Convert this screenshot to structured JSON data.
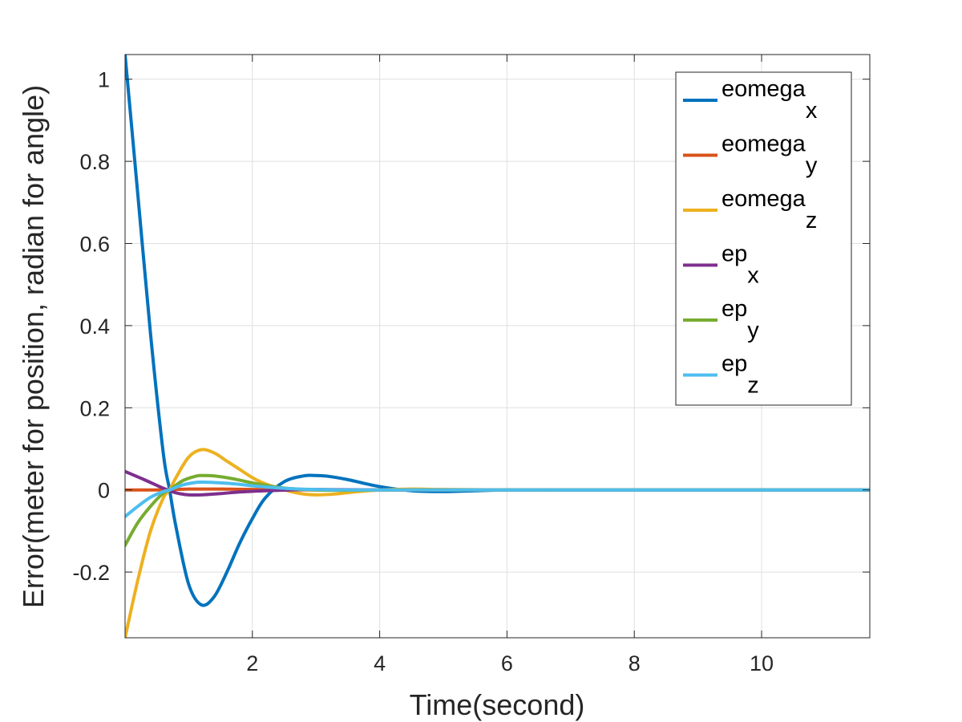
{
  "chart_data": {
    "type": "line",
    "xlabel": "Time(second)",
    "ylabel": "Error(meter for position, radian for angle)",
    "xlim": [
      0.0,
      11.7
    ],
    "ylim": [
      -0.36,
      1.06
    ],
    "xticks": [
      2,
      4,
      6,
      8,
      10
    ],
    "yticks": [
      -0.2,
      0,
      0.2,
      0.4,
      0.6,
      0.8,
      1
    ],
    "xtick_labels": [
      "2",
      "4",
      "6",
      "8",
      "10"
    ],
    "ytick_labels": [
      "-0.2",
      "0",
      "0.2",
      "0.4",
      "0.6",
      "0.8",
      "1"
    ],
    "grid": true,
    "legend_position": "top-right",
    "series": [
      {
        "name_base": "eomega",
        "name_sub": "x",
        "color": "#0072BD",
        "x": [
          0.0,
          0.2,
          0.4,
          0.6,
          0.7,
          0.8,
          1.0,
          1.2,
          1.4,
          1.6,
          1.8,
          2.0,
          2.2,
          2.5,
          2.8,
          3.0,
          3.2,
          3.5,
          4.0,
          4.5,
          5.0,
          5.5,
          6.0,
          7.0,
          8.0,
          9.0,
          10.0,
          11.7
        ],
        "y": [
          1.06,
          0.72,
          0.38,
          0.09,
          0.0,
          -0.09,
          -0.23,
          -0.28,
          -0.26,
          -0.2,
          -0.13,
          -0.07,
          -0.02,
          0.02,
          0.034,
          0.035,
          0.033,
          0.025,
          0.008,
          -0.002,
          -0.004,
          -0.002,
          0.0,
          0.0,
          0.0,
          0.0,
          0.0,
          0.0
        ]
      },
      {
        "name_base": "eomega",
        "name_sub": "y",
        "color": "#D95319",
        "x": [
          0.0,
          0.5,
          1.0,
          1.5,
          2.0,
          3.0,
          4.0,
          6.0,
          8.0,
          10.0,
          11.7
        ],
        "y": [
          0.0,
          0.0,
          0.002,
          0.002,
          0.001,
          0.0,
          0.0,
          0.0,
          0.0,
          0.0,
          0.0
        ]
      },
      {
        "name_base": "eomega",
        "name_sub": "z",
        "color": "#EDB120",
        "x": [
          0.0,
          0.2,
          0.4,
          0.6,
          0.7,
          0.8,
          1.0,
          1.2,
          1.4,
          1.6,
          1.8,
          2.0,
          2.2,
          2.5,
          2.8,
          3.0,
          3.3,
          3.6,
          4.0,
          4.5,
          5.0,
          6.0,
          8.0,
          10.0,
          11.7
        ],
        "y": [
          -0.36,
          -0.22,
          -0.1,
          -0.02,
          0.0,
          0.03,
          0.08,
          0.098,
          0.09,
          0.07,
          0.05,
          0.03,
          0.015,
          0.0,
          -0.01,
          -0.012,
          -0.01,
          -0.005,
          0.0,
          0.002,
          0.001,
          0.0,
          0.0,
          0.0,
          0.0
        ]
      },
      {
        "name_base": "ep",
        "name_sub": "x",
        "color": "#7E2F8E",
        "x": [
          0.0,
          0.3,
          0.6,
          0.8,
          1.0,
          1.2,
          1.5,
          1.8,
          2.2,
          2.6,
          3.0,
          4.0,
          6.0,
          8.0,
          10.0,
          11.7
        ],
        "y": [
          0.045,
          0.025,
          0.004,
          -0.007,
          -0.012,
          -0.012,
          -0.009,
          -0.005,
          -0.002,
          0.0,
          0.001,
          0.0,
          0.0,
          0.0,
          0.0,
          0.0
        ]
      },
      {
        "name_base": "ep",
        "name_sub": "y",
        "color": "#77AC30",
        "x": [
          0.0,
          0.2,
          0.4,
          0.6,
          0.7,
          0.9,
          1.1,
          1.2,
          1.4,
          1.7,
          2.0,
          2.3,
          2.6,
          3.0,
          3.5,
          4.0,
          5.0,
          6.0,
          8.0,
          10.0,
          11.7
        ],
        "y": [
          -0.135,
          -0.08,
          -0.04,
          -0.008,
          0.0,
          0.022,
          0.033,
          0.035,
          0.034,
          0.027,
          0.017,
          0.009,
          0.003,
          0.0,
          -0.001,
          0.0,
          0.0,
          0.0,
          0.0,
          0.0,
          0.0
        ]
      },
      {
        "name_base": "ep",
        "name_sub": "z",
        "color": "#4DBEEE",
        "x": [
          0.0,
          0.2,
          0.4,
          0.6,
          0.7,
          0.9,
          1.1,
          1.2,
          1.4,
          1.7,
          2.0,
          2.3,
          2.6,
          3.0,
          3.5,
          4.0,
          5.0,
          6.0,
          8.0,
          10.0,
          11.7
        ],
        "y": [
          -0.065,
          -0.04,
          -0.018,
          -0.004,
          0.0,
          0.012,
          0.018,
          0.019,
          0.018,
          0.015,
          0.01,
          0.006,
          0.003,
          0.001,
          0.0,
          0.0,
          0.0,
          0.0,
          0.0,
          0.0,
          0.0
        ]
      }
    ]
  }
}
